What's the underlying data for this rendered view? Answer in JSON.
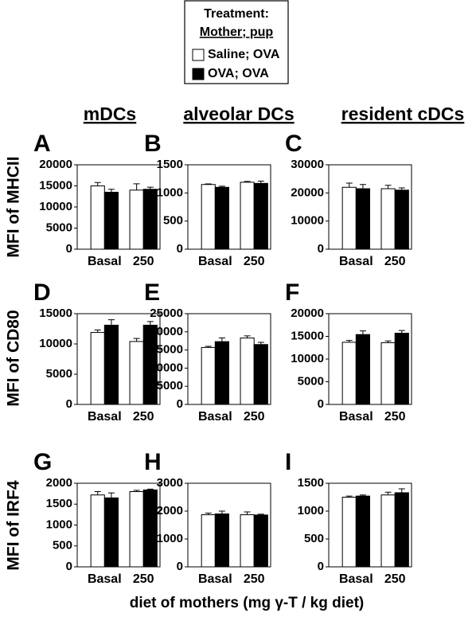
{
  "legend": {
    "title": "Treatment:",
    "subtitle": "Mother; pup"
  },
  "column_titles": [
    "mDCs",
    "alveolar DCs",
    "resident cDCs"
  ],
  "row_labels": [
    "MFI of MHCII",
    "MFI of CD80",
    "MFI of IRF4"
  ],
  "x_label": "diet of mothers (mg γ-T / kg diet)",
  "chart_data": [
    {
      "type": "bar",
      "title": "A",
      "categories": [
        "Basal",
        "250"
      ],
      "ylim": [
        0,
        20000
      ],
      "yticks": [
        0,
        5000,
        10000,
        15000,
        20000
      ],
      "series": [
        {
          "name": "Saline; OVA",
          "color": "#ffffff",
          "values": [
            15000,
            14000
          ],
          "errors": [
            800,
            1500
          ]
        },
        {
          "name": "OVA; OVA",
          "color": "#000000",
          "values": [
            13500,
            14200
          ],
          "errors": [
            700,
            500
          ]
        }
      ]
    },
    {
      "type": "bar",
      "title": "B",
      "categories": [
        "Basal",
        "250"
      ],
      "ylim": [
        0,
        1500
      ],
      "yticks": [
        0,
        500,
        1000,
        1500
      ],
      "series": [
        {
          "name": "Saline; OVA",
          "color": "#ffffff",
          "values": [
            1150,
            1190
          ],
          "errors": [
            10,
            15
          ]
        },
        {
          "name": "OVA; OVA",
          "color": "#000000",
          "values": [
            1100,
            1170
          ],
          "errors": [
            20,
            40
          ]
        }
      ]
    },
    {
      "type": "bar",
      "title": "C",
      "categories": [
        "Basal",
        "250"
      ],
      "ylim": [
        0,
        30000
      ],
      "yticks": [
        0,
        10000,
        20000,
        30000
      ],
      "series": [
        {
          "name": "Saline; OVA",
          "color": "#ffffff",
          "values": [
            22000,
            21500
          ],
          "errors": [
            1500,
            1200
          ]
        },
        {
          "name": "OVA; OVA",
          "color": "#000000",
          "values": [
            21500,
            21000
          ],
          "errors": [
            1500,
            800
          ]
        }
      ]
    },
    {
      "type": "bar",
      "title": "D",
      "categories": [
        "Basal",
        "250"
      ],
      "ylim": [
        0,
        15000
      ],
      "yticks": [
        0,
        5000,
        10000,
        15000
      ],
      "series": [
        {
          "name": "Saline; OVA",
          "color": "#ffffff",
          "values": [
            11900,
            10400
          ],
          "errors": [
            400,
            500
          ]
        },
        {
          "name": "OVA; OVA",
          "color": "#000000",
          "values": [
            13100,
            13100
          ],
          "errors": [
            900,
            600
          ]
        }
      ]
    },
    {
      "type": "bar",
      "title": "E",
      "categories": [
        "Basal",
        "250"
      ],
      "ylim": [
        0,
        25000
      ],
      "yticks": [
        0,
        5000,
        10000,
        15000,
        20000,
        25000
      ],
      "series": [
        {
          "name": "Saline; OVA",
          "color": "#ffffff",
          "values": [
            15700,
            18300
          ],
          "errors": [
            300,
            600
          ]
        },
        {
          "name": "OVA; OVA",
          "color": "#000000",
          "values": [
            17300,
            16500
          ],
          "errors": [
            1000,
            600
          ]
        }
      ]
    },
    {
      "type": "bar",
      "title": "F",
      "categories": [
        "Basal",
        "250"
      ],
      "ylim": [
        0,
        20000
      ],
      "yticks": [
        0,
        5000,
        10000,
        15000,
        20000
      ],
      "series": [
        {
          "name": "Saline; OVA",
          "color": "#ffffff",
          "values": [
            13700,
            13600
          ],
          "errors": [
            400,
            400
          ]
        },
        {
          "name": "OVA; OVA",
          "color": "#000000",
          "values": [
            15400,
            15700
          ],
          "errors": [
            800,
            600
          ]
        }
      ]
    },
    {
      "type": "bar",
      "title": "G",
      "categories": [
        "Basal",
        "250"
      ],
      "ylim": [
        0,
        2000
      ],
      "yticks": [
        0,
        500,
        1000,
        1500,
        2000
      ],
      "series": [
        {
          "name": "Saline; OVA",
          "color": "#ffffff",
          "values": [
            1720,
            1800
          ],
          "errors": [
            80,
            30
          ]
        },
        {
          "name": "OVA; OVA",
          "color": "#000000",
          "values": [
            1650,
            1840
          ],
          "errors": [
            120,
            20
          ]
        }
      ]
    },
    {
      "type": "bar",
      "title": "H",
      "categories": [
        "Basal",
        "250"
      ],
      "ylim": [
        0,
        3000
      ],
      "yticks": [
        0,
        1000,
        2000,
        3000
      ],
      "series": [
        {
          "name": "Saline; OVA",
          "color": "#ffffff",
          "values": [
            1870,
            1870
          ],
          "errors": [
            60,
            100
          ]
        },
        {
          "name": "OVA; OVA",
          "color": "#000000",
          "values": [
            1900,
            1860
          ],
          "errors": [
            100,
            30
          ]
        }
      ]
    },
    {
      "type": "bar",
      "title": "I",
      "categories": [
        "Basal",
        "250"
      ],
      "ylim": [
        0,
        1500
      ],
      "yticks": [
        0,
        500,
        1000,
        1500
      ],
      "series": [
        {
          "name": "Saline; OVA",
          "color": "#ffffff",
          "values": [
            1250,
            1290
          ],
          "errors": [
            20,
            50
          ]
        },
        {
          "name": "OVA; OVA",
          "color": "#000000",
          "values": [
            1270,
            1330
          ],
          "errors": [
            20,
            70
          ]
        }
      ]
    }
  ]
}
